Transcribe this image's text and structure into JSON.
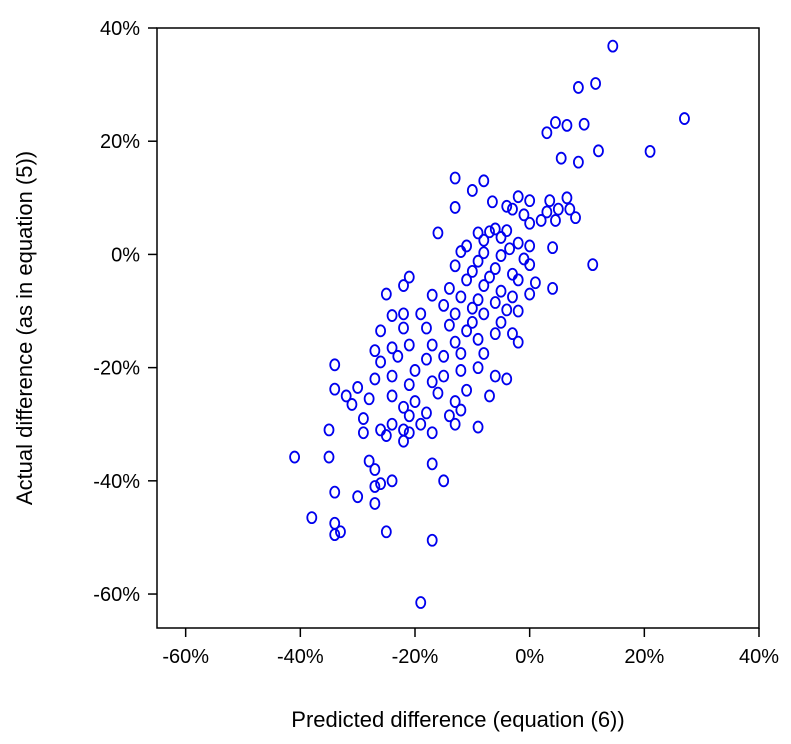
{
  "chart_data": {
    "type": "scatter",
    "title": "",
    "xlabel": "Predicted difference (equation (6))",
    "ylabel": "Actual difference (as in equation (5))",
    "xlim": [
      -65,
      40
    ],
    "ylim": [
      -66,
      40
    ],
    "x_ticks": [
      -60,
      -40,
      -20,
      0,
      20,
      40
    ],
    "y_ticks": [
      -60,
      -40,
      -20,
      0,
      20,
      40
    ],
    "x_tick_labels": [
      "-60%",
      "-40%",
      "-20%",
      "0%",
      "20%",
      "40%"
    ],
    "y_tick_labels": [
      "-60%",
      "-40%",
      "-20%",
      "0%",
      "20%",
      "40%"
    ],
    "grid": false,
    "marker": "open-ellipse",
    "marker_color": "#0000ee",
    "series": [
      {
        "points": [
          [
            14.5,
            36.8
          ],
          [
            8.5,
            29.5
          ],
          [
            11.5,
            30.2
          ],
          [
            4.5,
            23.3
          ],
          [
            6.5,
            22.8
          ],
          [
            9.5,
            23.0
          ],
          [
            3,
            21.5
          ],
          [
            27,
            24.0
          ],
          [
            21,
            18.2
          ],
          [
            12,
            18.3
          ],
          [
            5.5,
            17.0
          ],
          [
            8.5,
            16.3
          ],
          [
            6.5,
            10.0
          ],
          [
            7,
            8.0
          ],
          [
            8,
            6.5
          ],
          [
            -13,
            13.5
          ],
          [
            -8,
            13.0
          ],
          [
            -10,
            11.3
          ],
          [
            -2,
            10.2
          ],
          [
            0,
            9.5
          ],
          [
            3.5,
            9.5
          ],
          [
            5,
            8.0
          ],
          [
            -4,
            8.5
          ],
          [
            -6.5,
            9.3
          ],
          [
            -13,
            8.3
          ],
          [
            -3,
            8.0
          ],
          [
            3,
            7.5
          ],
          [
            -1,
            7.0
          ],
          [
            2,
            6.0
          ],
          [
            4.5,
            6.0
          ],
          [
            0,
            5.5
          ],
          [
            -6,
            4.5
          ],
          [
            -7,
            4.0
          ],
          [
            -4,
            4.2
          ],
          [
            -9,
            3.8
          ],
          [
            -16,
            3.8
          ],
          [
            -5,
            3.0
          ],
          [
            -8,
            2.5
          ],
          [
            -2,
            2.0
          ],
          [
            0,
            1.5
          ],
          [
            4,
            1.2
          ],
          [
            -11,
            1.5
          ],
          [
            -3.5,
            1.0
          ],
          [
            -12,
            0.5
          ],
          [
            -8,
            0.3
          ],
          [
            -5,
            -0.2
          ],
          [
            -1,
            -0.8
          ],
          [
            -9,
            -1.2
          ],
          [
            0,
            -1.8
          ],
          [
            11,
            -1.8
          ],
          [
            -13,
            -2.0
          ],
          [
            -6,
            -2.5
          ],
          [
            -10,
            -3.0
          ],
          [
            -3,
            -3.5
          ],
          [
            -7,
            -4.0
          ],
          [
            -11,
            -4.5
          ],
          [
            -2,
            -4.5
          ],
          [
            1,
            -5.0
          ],
          [
            4,
            -6.0
          ],
          [
            -8,
            -5.5
          ],
          [
            -5,
            -6.5
          ],
          [
            -14,
            -6.0
          ],
          [
            -21,
            -4.0
          ],
          [
            -22,
            -5.5
          ],
          [
            -25,
            -7.0
          ],
          [
            -17,
            -7.2
          ],
          [
            -12,
            -7.5
          ],
          [
            -9,
            -8.0
          ],
          [
            -3,
            -7.5
          ],
          [
            0,
            -7.0
          ],
          [
            -6,
            -8.5
          ],
          [
            -10,
            -9.5
          ],
          [
            -15,
            -9.0
          ],
          [
            -4,
            -9.8
          ],
          [
            -13,
            -10.5
          ],
          [
            -8,
            -10.5
          ],
          [
            -2,
            -10.0
          ],
          [
            -19,
            -10.5
          ],
          [
            -22,
            -10.5
          ],
          [
            -24,
            -10.8
          ],
          [
            -10,
            -12.0
          ],
          [
            -5,
            -12.0
          ],
          [
            -14,
            -12.5
          ],
          [
            -18,
            -13.0
          ],
          [
            -22,
            -13.0
          ],
          [
            -26,
            -13.5
          ],
          [
            -11,
            -13.5
          ],
          [
            -6,
            -14.0
          ],
          [
            -3,
            -14.0
          ],
          [
            -9,
            -15.0
          ],
          [
            -13,
            -15.5
          ],
          [
            -2,
            -15.5
          ],
          [
            -17,
            -16.0
          ],
          [
            -21,
            -16.0
          ],
          [
            -24,
            -16.5
          ],
          [
            -27,
            -17.0
          ],
          [
            -12,
            -17.5
          ],
          [
            -8,
            -17.5
          ],
          [
            -15,
            -18.0
          ],
          [
            -18,
            -18.5
          ],
          [
            -23,
            -18.0
          ],
          [
            -26,
            -19.0
          ],
          [
            -34,
            -19.5
          ],
          [
            -9,
            -20.0
          ],
          [
            -12,
            -20.5
          ],
          [
            -20,
            -20.5
          ],
          [
            -15,
            -21.5
          ],
          [
            -6,
            -21.5
          ],
          [
            -4,
            -22.0
          ],
          [
            -24,
            -21.5
          ],
          [
            -27,
            -22.0
          ],
          [
            -17,
            -22.5
          ],
          [
            -21,
            -23.0
          ],
          [
            -30,
            -23.5
          ],
          [
            -34,
            -23.8
          ],
          [
            -11,
            -24.0
          ],
          [
            -16,
            -24.5
          ],
          [
            -24,
            -25.0
          ],
          [
            -28,
            -25.5
          ],
          [
            -32,
            -25.0
          ],
          [
            -20,
            -26.0
          ],
          [
            -13,
            -26.0
          ],
          [
            -7,
            -25.0
          ],
          [
            -31,
            -26.5
          ],
          [
            -22,
            -27.0
          ],
          [
            -12,
            -27.5
          ],
          [
            -18,
            -28.0
          ],
          [
            -21,
            -28.5
          ],
          [
            -14,
            -28.5
          ],
          [
            -29,
            -29.0
          ],
          [
            -24,
            -30.0
          ],
          [
            -19,
            -30.0
          ],
          [
            -9,
            -30.5
          ],
          [
            -13,
            -30.0
          ],
          [
            -22,
            -31.0
          ],
          [
            -26,
            -31.0
          ],
          [
            -29,
            -31.5
          ],
          [
            -35,
            -31.0
          ],
          [
            -17,
            -31.5
          ],
          [
            -25,
            -32.0
          ],
          [
            -22,
            -33.0
          ],
          [
            -21,
            -31.5
          ],
          [
            -35,
            -35.8
          ],
          [
            -41,
            -35.8
          ],
          [
            -28,
            -36.5
          ],
          [
            -17,
            -37.0
          ],
          [
            -27,
            -38.0
          ],
          [
            -15,
            -40.0
          ],
          [
            -24,
            -40.0
          ],
          [
            -26,
            -40.5
          ],
          [
            -27,
            -41.0
          ],
          [
            -34,
            -42.0
          ],
          [
            -30,
            -42.8
          ],
          [
            -27,
            -44.0
          ],
          [
            -38,
            -46.5
          ],
          [
            -34,
            -47.5
          ],
          [
            -25,
            -49.0
          ],
          [
            -33,
            -49.0
          ],
          [
            -34,
            -49.5
          ],
          [
            -17,
            -50.5
          ],
          [
            -19,
            -61.5
          ]
        ]
      }
    ]
  }
}
